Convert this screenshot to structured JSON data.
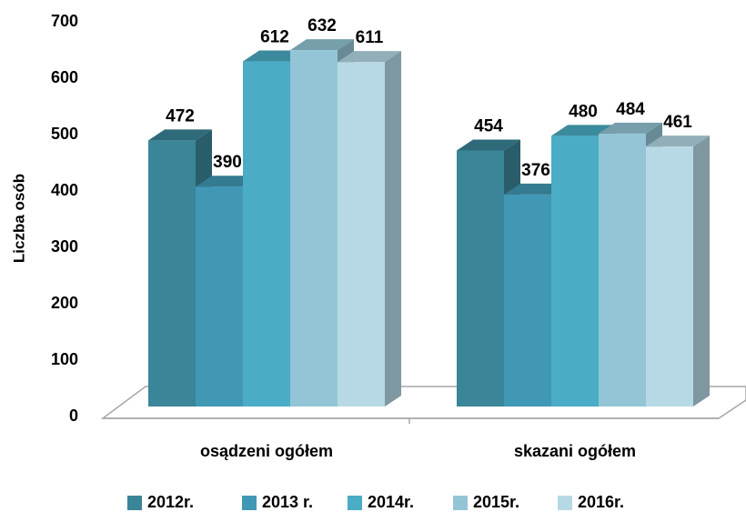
{
  "chart_data": {
    "type": "bar3d",
    "y_axis_label": "Liczba osób",
    "categories": [
      "osądzeni ogółem",
      "skazani ogółem"
    ],
    "series": [
      {
        "name": "2012r.",
        "color": "#3a8597",
        "values": [
          472,
          454
        ]
      },
      {
        "name": "2013 r.",
        "color": "#4198b5",
        "values": [
          390,
          376
        ]
      },
      {
        "name": "2014r.",
        "color": "#4bacc6",
        "values": [
          612,
          480
        ]
      },
      {
        "name": "2015r.",
        "color": "#93c5d6",
        "values": [
          632,
          484
        ]
      },
      {
        "name": "2016r.",
        "color": "#b7d9e6",
        "values": [
          611,
          461
        ]
      }
    ],
    "ylim": [
      0,
      700
    ],
    "yticks": [
      0,
      100,
      200,
      300,
      400,
      500,
      600,
      700
    ],
    "legend": "bottom"
  }
}
